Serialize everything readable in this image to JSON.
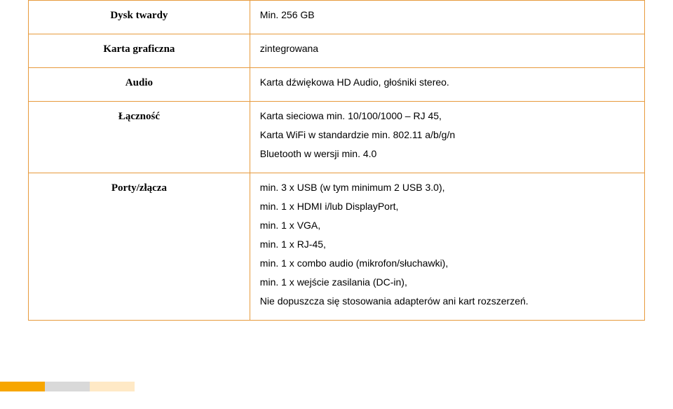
{
  "table": {
    "border_color": "#e79a3c",
    "rows": [
      {
        "label": "Dysk twardy",
        "lines": [
          "Min. 256 GB"
        ]
      },
      {
        "label": "Karta graficzna",
        "lines": [
          "zintegrowana"
        ]
      },
      {
        "label": "Audio",
        "lines": [
          "Karta dźwiękowa HD Audio, głośniki stereo."
        ]
      },
      {
        "label": "Łączność",
        "lines": [
          "Karta sieciowa min. 10/100/1000 – RJ 45,",
          "Karta WiFi w standardzie min. 802.11 a/b/g/n",
          "Bluetooth w wersji min.  4.0"
        ]
      },
      {
        "label": "Porty/złącza",
        "lines": [
          "min. 3 x USB (w tym minimum 2 USB 3.0),",
          "min. 1 x HDMI i/lub DisplayPort,",
          "min. 1 x VGA,",
          "min. 1 x RJ-45,",
          "min. 1 x combo audio (mikrofon/słuchawki),",
          "min. 1 x wejście zasilania (DC-in),",
          "Nie dopuszcza się stosowania adapterów ani kart rozszerzeń."
        ]
      }
    ]
  },
  "footer_colors": [
    "#f7a600",
    "#d9d9d9",
    "#ffe9c6"
  ]
}
